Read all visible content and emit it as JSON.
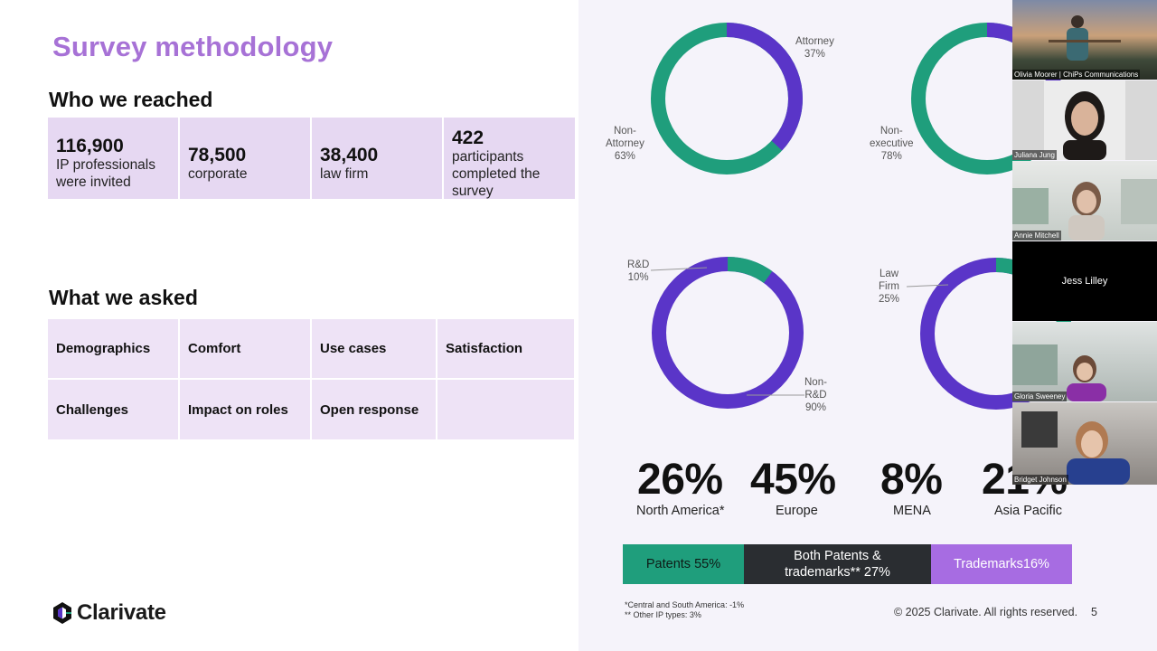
{
  "slide": {
    "title": "Survey methodology",
    "reached_heading": "Who we reached",
    "reached": [
      {
        "num": "116,900",
        "desc": "IP professionals were invited"
      },
      {
        "num": "78,500",
        "desc": "corporate"
      },
      {
        "num": "38,400",
        "desc": "law firm"
      },
      {
        "num": "422",
        "desc": "participants completed the survey"
      }
    ],
    "asked_heading": "What we asked",
    "asked": [
      "Demographics",
      "Comfort",
      "Use cases",
      "Satisfaction",
      "Challenges",
      "Impact on roles",
      "Open response",
      ""
    ],
    "logo_text": "Clarivate",
    "donuts": {
      "attorney": {
        "label_a": "Attorney",
        "pct_a": "37%",
        "label_b": "Non-\nAttorney",
        "pct_b": "63%",
        "fraction_purple": 0.37
      },
      "executive": {
        "label_b": "Non-\nexecutive",
        "pct_b": "78%",
        "fraction_purple": 0.22
      },
      "rnd": {
        "label_a": "R&D",
        "pct_a": "10%",
        "label_b": "Non-\nR&D",
        "pct_b": "90%",
        "fraction_green": 0.1
      },
      "lawfirm": {
        "label_a": "Law\nFirm",
        "pct_a": "25%",
        "fraction_green": 0.25
      }
    },
    "regions": [
      {
        "pct": "26%",
        "name": "North America*"
      },
      {
        "pct": "45%",
        "name": "Europe"
      },
      {
        "pct": "8%",
        "name": "MENA"
      },
      {
        "pct": "21%",
        "name": "Asia Pacific"
      }
    ],
    "ip_types": {
      "patents": "Patents 55%",
      "both": "Both Patents & trademarks** 27%",
      "trademarks": "Trademarks16%"
    },
    "footnote_1": "*Central and South America: -1%",
    "footnote_2": "** Other IP types: 3%",
    "copyright": "© 2025 Clarivate. All rights reserved.",
    "page_number": "5",
    "colors": {
      "purple": "#5a35c8",
      "green": "#1f9e7c",
      "title": "#a772d6"
    }
  },
  "participants": [
    {
      "name": "Olivia Moorer | ChiPs Communications"
    },
    {
      "name": "Juliana Jung"
    },
    {
      "name": "Annie Mitchell"
    },
    {
      "name": "Jess Lilley"
    },
    {
      "name": "Gloria Sweeney"
    },
    {
      "name": "Bridget Johnson"
    }
  ]
}
